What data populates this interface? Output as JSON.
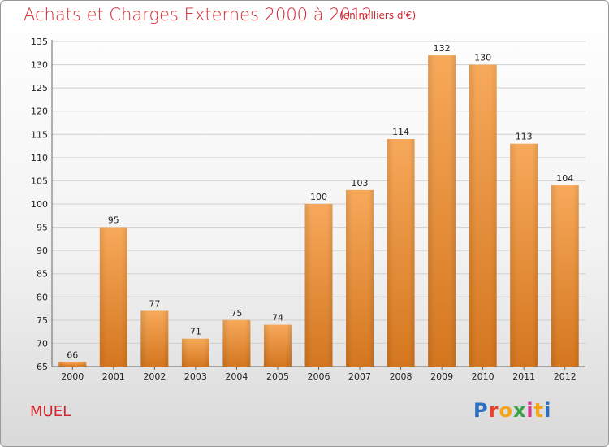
{
  "header": {
    "title": "Achats et Charges Externes 2000 à 2012",
    "subtitle": "(en milliers d'€)"
  },
  "commune": "MUEL",
  "logo": {
    "text": "Proxiti",
    "letter_colors": [
      "#2b6fc4",
      "#e8402b",
      "#f5a418",
      "#3aa34a",
      "#d63b8f",
      "#f5a418",
      "#2b6fc4"
    ]
  },
  "colors": {
    "bar_top": "#f7a95a",
    "bar_bottom": "#d4761f",
    "text": "#d2262f"
  },
  "chart_data": {
    "type": "bar",
    "categories": [
      "2000",
      "2001",
      "2002",
      "2003",
      "2004",
      "2005",
      "2006",
      "2007",
      "2008",
      "2009",
      "2010",
      "2011",
      "2012"
    ],
    "values": [
      66,
      95,
      77,
      71,
      75,
      74,
      100,
      103,
      114,
      132,
      130,
      113,
      104
    ],
    "title": "Achats et Charges Externes 2000 à 2012",
    "subtitle": "(en milliers d'€)",
    "xlabel": "",
    "ylabel": "",
    "ylim": [
      65,
      135
    ],
    "yticks": [
      65,
      70,
      75,
      80,
      85,
      90,
      95,
      100,
      105,
      110,
      115,
      120,
      125,
      130,
      135
    ],
    "grid": true
  }
}
